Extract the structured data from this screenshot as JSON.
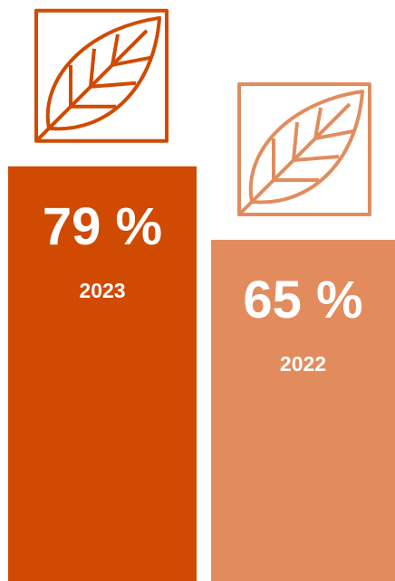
{
  "chart_data": {
    "type": "bar",
    "categories": [
      "2023",
      "2022"
    ],
    "values": [
      79,
      65
    ],
    "value_labels": [
      "79 %",
      "65 %"
    ],
    "colors": [
      "#d04a02",
      "#e28c5e"
    ]
  }
}
